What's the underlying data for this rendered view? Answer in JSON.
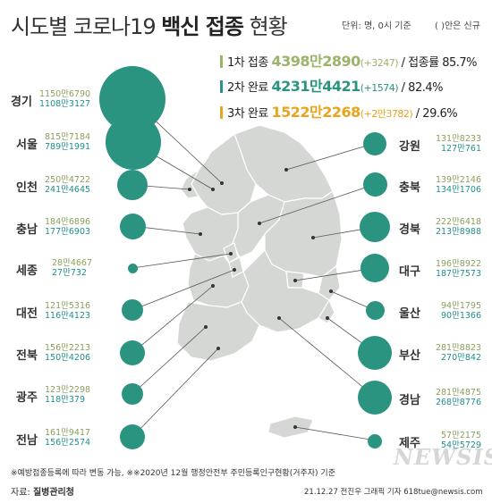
{
  "title": {
    "prefix": "시도별 코로나19 ",
    "bold": "백신 접종",
    "suffix": " 현황"
  },
  "unit": "단위: 명, 0시 기준",
  "unit_note": "( )안은 신규",
  "summary": [
    {
      "label": "1차 접종",
      "value": "4398만2890",
      "increase": "(+3247)",
      "rate_label": "/ 접종률 85.7%",
      "color": "#9bb36a"
    },
    {
      "label": "2차 완료",
      "value": "4231만4421",
      "increase": "(+1574)",
      "rate_label": "/ 82.4%",
      "color": "#2a9480"
    },
    {
      "label": "3차 완료",
      "value": "1522만2268",
      "increase": "(+2만3782)",
      "rate_label": "/ 29.6%",
      "color": "#e8a41c"
    }
  ],
  "regions_left": [
    {
      "name": "경기",
      "first": "1150만6790",
      "second": "1108만3127"
    },
    {
      "name": "서울",
      "first": "815만7184",
      "second": "789만1991"
    },
    {
      "name": "인천",
      "first": "250만4722",
      "second": "241만4645"
    },
    {
      "name": "충남",
      "first": "184만6896",
      "second": "177만6903"
    },
    {
      "name": "세종",
      "first": "28만4667",
      "second": "27만732"
    },
    {
      "name": "대전",
      "first": "121만5316",
      "second": "116만4123"
    },
    {
      "name": "전북",
      "first": "156만2213",
      "second": "150만4206"
    },
    {
      "name": "광주",
      "first": "123만2298",
      "second": "118만379"
    },
    {
      "name": "전남",
      "first": "161만9417",
      "second": "156만2574"
    }
  ],
  "regions_right": [
    {
      "name": "강원",
      "first": "131만8233",
      "second": "127만761"
    },
    {
      "name": "충북",
      "first": "139만2146",
      "second": "134만1706"
    },
    {
      "name": "경북",
      "first": "222만6418",
      "second": "213만8988"
    },
    {
      "name": "대구",
      "first": "196만8922",
      "second": "187만7573"
    },
    {
      "name": "울산",
      "first": "94만1795",
      "second": "90만1366"
    },
    {
      "name": "부산",
      "first": "281만8823",
      "second": "270만842"
    },
    {
      "name": "경남",
      "first": "281만4875",
      "second": "268만8776"
    },
    {
      "name": "제주",
      "first": "57만2175",
      "second": "54만5729"
    }
  ],
  "colors": {
    "bubble": "#2a9480",
    "first_dose_text": "#8aa05a",
    "second_dose_text": "#1f8f8a",
    "map_fill": "#d4d7d4",
    "map_border": "#ffffff"
  },
  "footnote": "※예방접종등록에 따라 변동 가능, ※※2020년 12월 행정안전부 주민등록인구현황(거주자) 기준",
  "source_label": "자료: ",
  "source_name": "질병관리청",
  "credit": "21.12.27 전진우 그래픽 기자 618tue@newsis.com",
  "watermark": "NEWSIS"
}
